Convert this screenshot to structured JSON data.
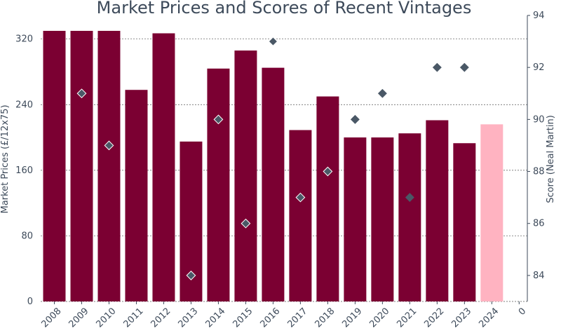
{
  "chart_data": {
    "type": "bar",
    "title": "Market Prices and Scores of Recent Vintages",
    "ylabel": "Market Prices (£/12x75)",
    "y2label": "Score (Neal Martin)",
    "categories": [
      "2008",
      "2009",
      "2010",
      "2011",
      "2012",
      "2013",
      "2014",
      "2015",
      "2016",
      "2017",
      "2018",
      "2019",
      "2020",
      "2021",
      "2022",
      "2023",
      "2024",
      "0"
    ],
    "ylim": [
      0,
      330
    ],
    "y2lim": [
      83.0,
      94.0
    ],
    "yticks": [
      0,
      80,
      160,
      240,
      320
    ],
    "y2ticks": [
      84,
      86,
      88,
      90,
      92,
      94
    ],
    "grid": true,
    "series": [
      {
        "type": "bar",
        "values": [
          330,
          330,
          330,
          258,
          327,
          195,
          284,
          306,
          285,
          209,
          250,
          200,
          200,
          205,
          221,
          193,
          216,
          null
        ],
        "highlight_index": 16,
        "color": "#7b0032",
        "highlight_color": "#ffb3c1"
      },
      {
        "type": "scatter",
        "values": [
          null,
          91,
          89,
          null,
          null,
          84,
          90,
          86,
          93,
          87,
          88,
          90,
          91,
          87,
          92,
          92,
          null,
          null
        ],
        "filled_from_index": 11,
        "color": "#4a5866"
      }
    ]
  }
}
